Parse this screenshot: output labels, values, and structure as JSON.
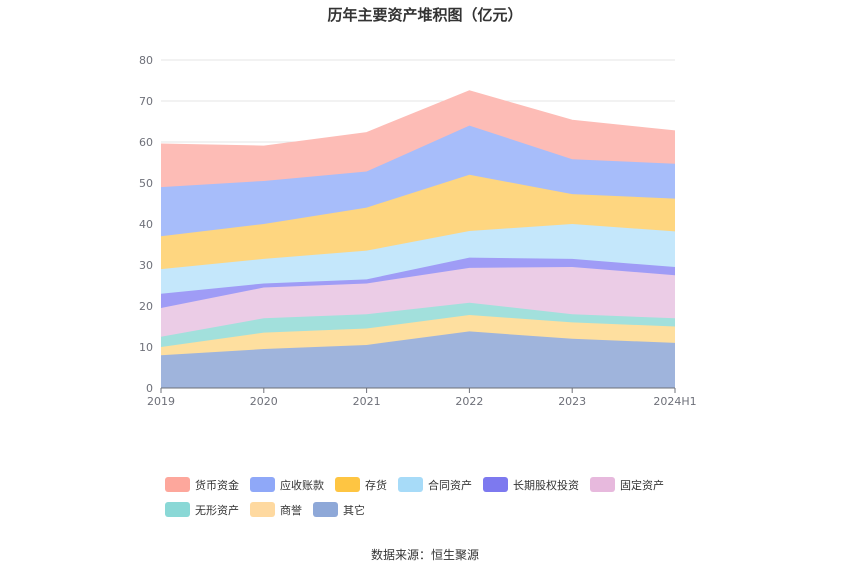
{
  "title": "历年主要资产堆积图（亿元）",
  "source": "数据来源：恒生聚源",
  "chart_data": {
    "type": "area",
    "stacked": true,
    "x": [
      "2019",
      "2020",
      "2021",
      "2022",
      "2023",
      "2024H1"
    ],
    "y_ticks": [
      "0",
      "10",
      "20",
      "30",
      "40",
      "50",
      "60",
      "70",
      "80"
    ],
    "ylim": [
      0,
      80
    ],
    "grid": true,
    "legend_position": "bottom",
    "series": [
      {
        "name": "其它",
        "color": "#9fb4dc",
        "values": [
          8.0,
          9.5,
          10.5,
          13.8,
          12.0,
          11.0
        ]
      },
      {
        "name": "商誉",
        "color": "#fedf9f",
        "values": [
          2.0,
          4.0,
          4.0,
          4.0,
          4.0,
          4.0
        ]
      },
      {
        "name": "无形资产",
        "color": "#a2e0dc",
        "values": [
          2.5,
          3.5,
          3.5,
          3.0,
          2.0,
          2.0
        ]
      },
      {
        "name": "固定资产",
        "color": "#ebcce6",
        "values": [
          7.0,
          7.5,
          7.5,
          8.5,
          11.5,
          10.5
        ]
      },
      {
        "name": "长期股权投资",
        "color": "#9f9cf6",
        "values": [
          3.5,
          1.0,
          1.0,
          2.5,
          2.0,
          2.0
        ]
      },
      {
        "name": "合同资产",
        "color": "#c4e7fb",
        "values": [
          6.0,
          6.0,
          7.0,
          6.5,
          8.5,
          8.7
        ]
      },
      {
        "name": "存货",
        "color": "#fed680",
        "values": [
          8.0,
          8.5,
          10.5,
          13.7,
          7.3,
          8.0
        ]
      },
      {
        "name": "应收账款",
        "color": "#a7bdfa",
        "values": [
          12.0,
          10.5,
          8.8,
          12.0,
          8.5,
          8.5
        ]
      },
      {
        "name": "货币资金",
        "color": "#fdbcb6",
        "values": [
          10.5,
          8.5,
          9.5,
          8.5,
          9.5,
          8.0
        ]
      }
    ]
  },
  "legend": {
    "row1": [
      {
        "label": "货币资金",
        "color": "#fda79c"
      },
      {
        "label": "应收账款",
        "color": "#8fa8f8"
      },
      {
        "label": "存货",
        "color": "#fec542"
      },
      {
        "label": "合同资产",
        "color": "#a7dbf8"
      },
      {
        "label": "长期股权投资",
        "color": "#7d79ef"
      },
      {
        "label": "固定资产",
        "color": "#e7b9dd"
      }
    ],
    "row2": [
      {
        "label": "无形资产",
        "color": "#8ad8d6"
      },
      {
        "label": "商誉",
        "color": "#fed9a0"
      },
      {
        "label": "其它",
        "color": "#8ea8d8"
      }
    ]
  }
}
